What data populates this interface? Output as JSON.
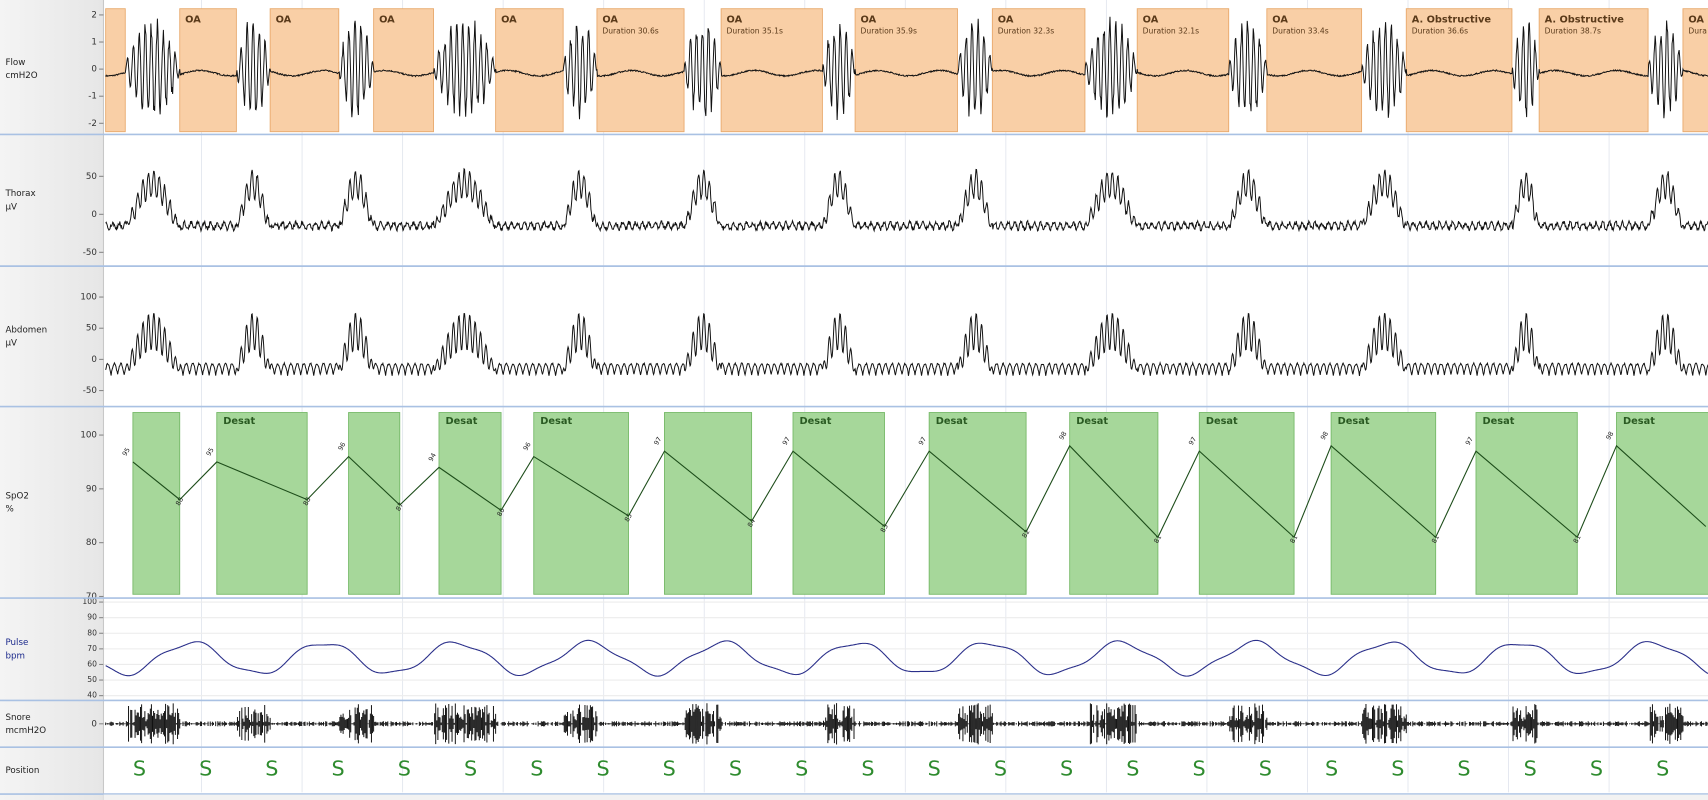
{
  "channels": [
    {
      "label": "Flow",
      "unit": "cmH2O",
      "range": [
        -2.35,
        2.35
      ],
      "ticks": [
        2,
        1,
        0,
        -1,
        -2
      ]
    },
    {
      "label": "Thorax",
      "unit": "µV",
      "range": [
        -66,
        103
      ],
      "ticks": [
        50,
        0,
        -50
      ]
    },
    {
      "label": "Abdomen",
      "unit": "µV",
      "range": [
        -73,
        147
      ],
      "ticks": [
        100,
        50,
        0,
        -50
      ]
    },
    {
      "label": "SpO2",
      "unit": "%",
      "range": [
        70,
        105
      ],
      "ticks": [
        100,
        90,
        80,
        70
      ]
    },
    {
      "label": "Pulse",
      "unit": "bpm",
      "range": [
        38,
        101.5
      ],
      "ticks": [
        100,
        90,
        80,
        70,
        60,
        50,
        40
      ]
    },
    {
      "label": "Snore",
      "unit": "mcmH2O",
      "range": [
        -1,
        1
      ],
      "ticks": [
        0
      ]
    },
    {
      "label": "Position"
    }
  ],
  "flow_events": [
    {
      "label": "OA"
    },
    {
      "label": "OA"
    },
    {
      "label": "OA"
    },
    {
      "label": "OA"
    },
    {
      "label": "OA",
      "duration": "Duration 30.6s"
    },
    {
      "label": "OA",
      "duration": "Duration 35.1s"
    },
    {
      "label": "OA",
      "duration": "Duration 35.9s"
    },
    {
      "label": "OA",
      "duration": "Duration 32.3s"
    },
    {
      "label": "OA",
      "duration": "Duration 32.1s"
    },
    {
      "label": "OA",
      "duration": "Duration 33.4s"
    },
    {
      "label": "A. Obstructive",
      "duration": "Duration 36.6s"
    },
    {
      "label": "A. Obstructive",
      "duration": "Duration 38.7s"
    },
    {
      "label": "OA",
      "duration": "Dura"
    }
  ],
  "desat_events": [
    {
      "peak": 95,
      "nadir": 88
    },
    {
      "label": "Desat",
      "peak": 95,
      "nadir": 88
    },
    {
      "peak": 96,
      "nadir": 87
    },
    {
      "label": "Desat",
      "peak": 94,
      "nadir": 86
    },
    {
      "label": "Desat",
      "peak": 96,
      "nadir": 85
    },
    {
      "peak": 97,
      "nadir": 84
    },
    {
      "label": "Desat",
      "peak": 97,
      "nadir": 83
    },
    {
      "label": "Desat",
      "peak": 97,
      "nadir": 82
    },
    {
      "label": "Desat",
      "peak": 98,
      "nadir": 81
    },
    {
      "label": "Desat",
      "peak": 97,
      "nadir": 81
    },
    {
      "label": "Desat",
      "peak": 98,
      "nadir": 81
    },
    {
      "label": "Desat",
      "peak": 97,
      "nadir": 81
    },
    {
      "label": "Desat",
      "peak": 98,
      "nadir": 83
    }
  ],
  "positions": [
    "S",
    "S",
    "S",
    "S",
    "S",
    "S",
    "S",
    "S",
    "S",
    "S",
    "S",
    "S",
    "S",
    "S",
    "S",
    "S",
    "S",
    "S",
    "S",
    "S",
    "S",
    "S",
    "S",
    "S"
  ]
}
